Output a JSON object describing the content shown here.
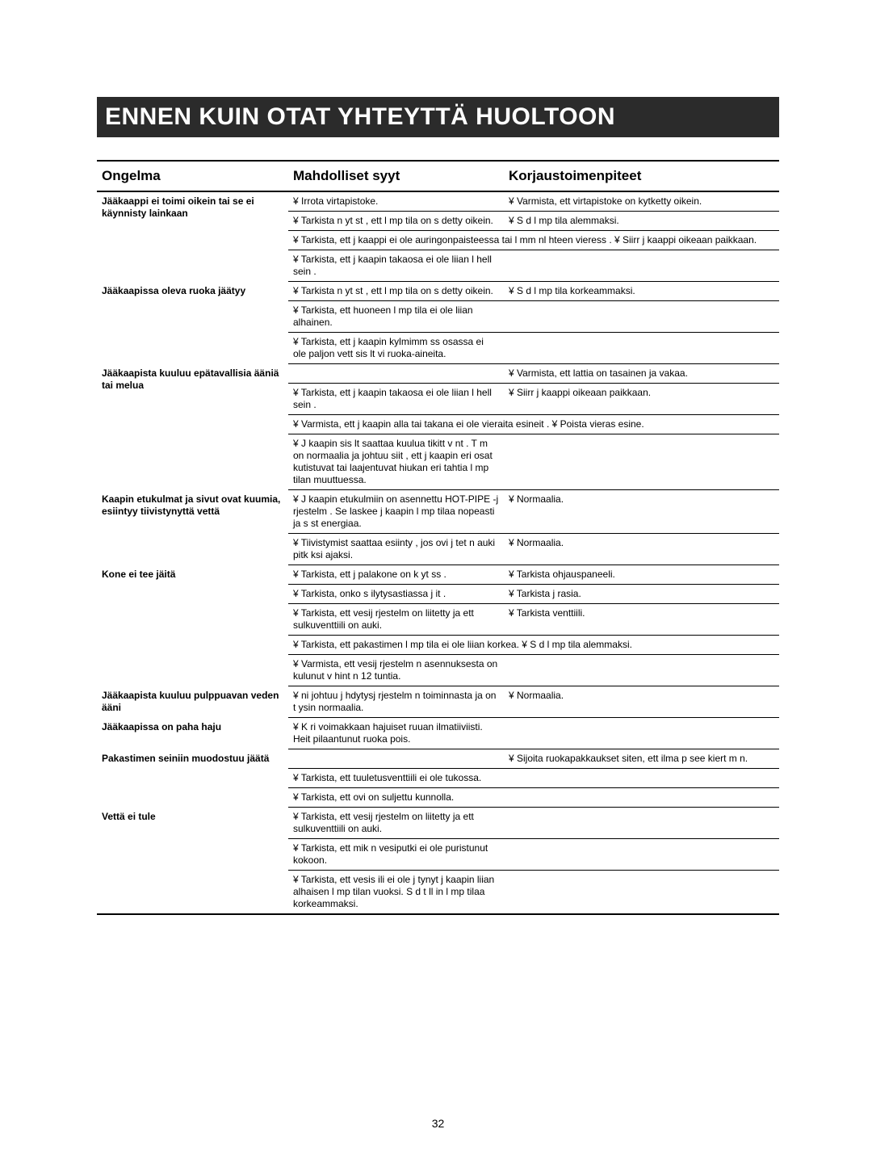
{
  "page_number": "32",
  "title": "ENNEN KUIN OTAT YHTEYTTÄ HUOLTOON",
  "headers": {
    "problem": "Ongelma",
    "cause": "Mahdolliset syyt",
    "fix": "Korjaustoimenpiteet"
  },
  "rows": [
    {
      "problem": "Jääkaappi ei toimi oikein tai se ei käynnisty lainkaan",
      "cause": "¥ Irrota virtapistoke.",
      "fix": "¥ Varmista, ett  virtapistoke on kytketty oikein.",
      "problem_rowspan": 4
    },
    {
      "cause": "¥ Tarkista n yt st , ett  l mp tila on s  detty oikein.",
      "fix": "¥ S  d  l mp tila alemmaksi."
    },
    {
      "cause": "¥ Tarkista, ett  j  kaappi ei ole auringonpaisteessa tai l mm nl hteen vieress .",
      "fix": "¥ Siirr  j  kaappi oikeaan paikkaan.",
      "merge_cause_fix": true
    },
    {
      "cause": "¥ Tarkista, ett  j  kaapin takaosa ei ole liian l hell  sein .",
      "fix": "",
      "strong": true
    },
    {
      "problem": "Jääkaapissa oleva ruoka jäätyy",
      "cause": "¥ Tarkista n yt st , ett  l mp tila on s  detty oikein.",
      "fix": "¥ S  d  l mp tila korkeammaksi.",
      "problem_rowspan": 3
    },
    {
      "cause": "¥ Tarkista, ett  huoneen l mp tila ei ole liian alhainen.",
      "fix": ""
    },
    {
      "cause": "¥ Tarkista, ett  j  kaapin kylmimm ss  osassa ei ole paljon vett  sis lt vi  ruoka-aineita.",
      "fix": "",
      "strong": true
    },
    {
      "problem": "Jääkaapista kuuluu epätavallisia ääniä tai melua",
      "cause": "",
      "fix": "¥ Varmista, ett  lattia on tasainen ja vakaa.",
      "problem_rowspan": 4
    },
    {
      "cause": "¥ Tarkista, ett  j  kaapin takaosa ei ole liian l hell  sein .",
      "fix": "¥ Siirr  j  kaappi oikeaan paikkaan."
    },
    {
      "cause": "¥ Varmista, ett  j  kaapin alla tai takana ei ole vieraita esineit .",
      "fix": "¥ Poista vieras esine.",
      "merge_cause_fix": true
    },
    {
      "cause": "¥ J  kaapin sis lt  saattaa kuulua tikitt v    nt . T m  on normaalia ja johtuu siit , ett  j  kaapin eri osat kutistuvat tai laajentuvat hiukan eri tahtia l mp tilan muuttuessa.",
      "fix": "",
      "strong": true
    },
    {
      "problem": "Kaapin etukulmat ja sivut ovat kuumia, esiintyy tiivistynyttä vettä",
      "cause": "¥ J  kaapin etukulmiin on asennettu HOT-PIPE -j rjestelm . Se laskee j  kaapin l mp tilaa nopeasti ja s  st   energiaa.",
      "fix": "¥ Normaalia.",
      "problem_rowspan": 2
    },
    {
      "cause": "¥ Tiivistymist  saattaa esiinty , jos ovi j tet  n auki pitk ksi ajaksi.",
      "fix": "¥ Normaalia.",
      "strong": true
    },
    {
      "problem": "Kone ei tee jäitä",
      "cause": "¥ Tarkista, ett  j  palakone on k yt ss .",
      "fix": "¥ Tarkista ohjauspaneeli.",
      "problem_rowspan": 5
    },
    {
      "cause": "¥ Tarkista, onko s ilytysastiassa j it .",
      "fix": "¥ Tarkista j  rasia."
    },
    {
      "cause": "¥ Tarkista, ett  vesij rjestelm  on liitetty ja ett  sulkuventtiili on auki.",
      "fix": "¥ Tarkista venttiili."
    },
    {
      "cause": "¥ Tarkista, ett  pakastimen l mp tila ei ole liian korkea.",
      "fix": "¥ S  d  l mp tila alemmaksi.",
      "merge_cause_fix": true
    },
    {
      "cause": "¥ Varmista, ett  vesij rjestelm n asennuksesta on kulunut v hint  n 12 tuntia.",
      "fix": "",
      "strong": true
    },
    {
      "problem": "Jääkaapista kuuluu pulppuavan veden ääni",
      "cause": "¥   ni johtuu j  hdytysj rjestelm n toiminnasta ja on t ysin normaalia.",
      "fix": "¥ Normaalia.",
      "strong": true
    },
    {
      "problem": "Jääkaapissa on paha haju",
      "cause": "¥ K  ri voimakkaan hajuiset ruuan ilmatiiviisti. Heit  pilaantunut ruoka pois.",
      "fix": "",
      "strong": true
    },
    {
      "problem": "Pakastimen seiniin muodostuu jäätä",
      "cause": "",
      "fix": "¥ Sijoita ruokapakkaukset siten, ett  ilma p  see kiert m  n.",
      "problem_rowspan": 3
    },
    {
      "cause": "¥ Tarkista, ett  tuuletusventtiili ei ole tukossa.",
      "fix": ""
    },
    {
      "cause": "¥ Tarkista, ett  ovi on suljettu kunnolla.",
      "fix": "",
      "strong": true
    },
    {
      "problem": "Vettä ei tule",
      "cause": "¥ Tarkista, ett  vesij rjestelm  on liitetty ja ett  sulkuventtiili on auki.",
      "fix": "",
      "problem_rowspan": 3
    },
    {
      "cause": "¥ Tarkista, ett  mik  n vesiputki ei ole puristunut kokoon.",
      "fix": ""
    },
    {
      "cause": "¥ Tarkista, ett  vesis ili  ei ole j  tynyt j  kaapin liian alhaisen l mp tilan vuoksi. S  d  t ll in l mp tilaa korkeammaksi.",
      "fix": "",
      "strong": true
    }
  ]
}
